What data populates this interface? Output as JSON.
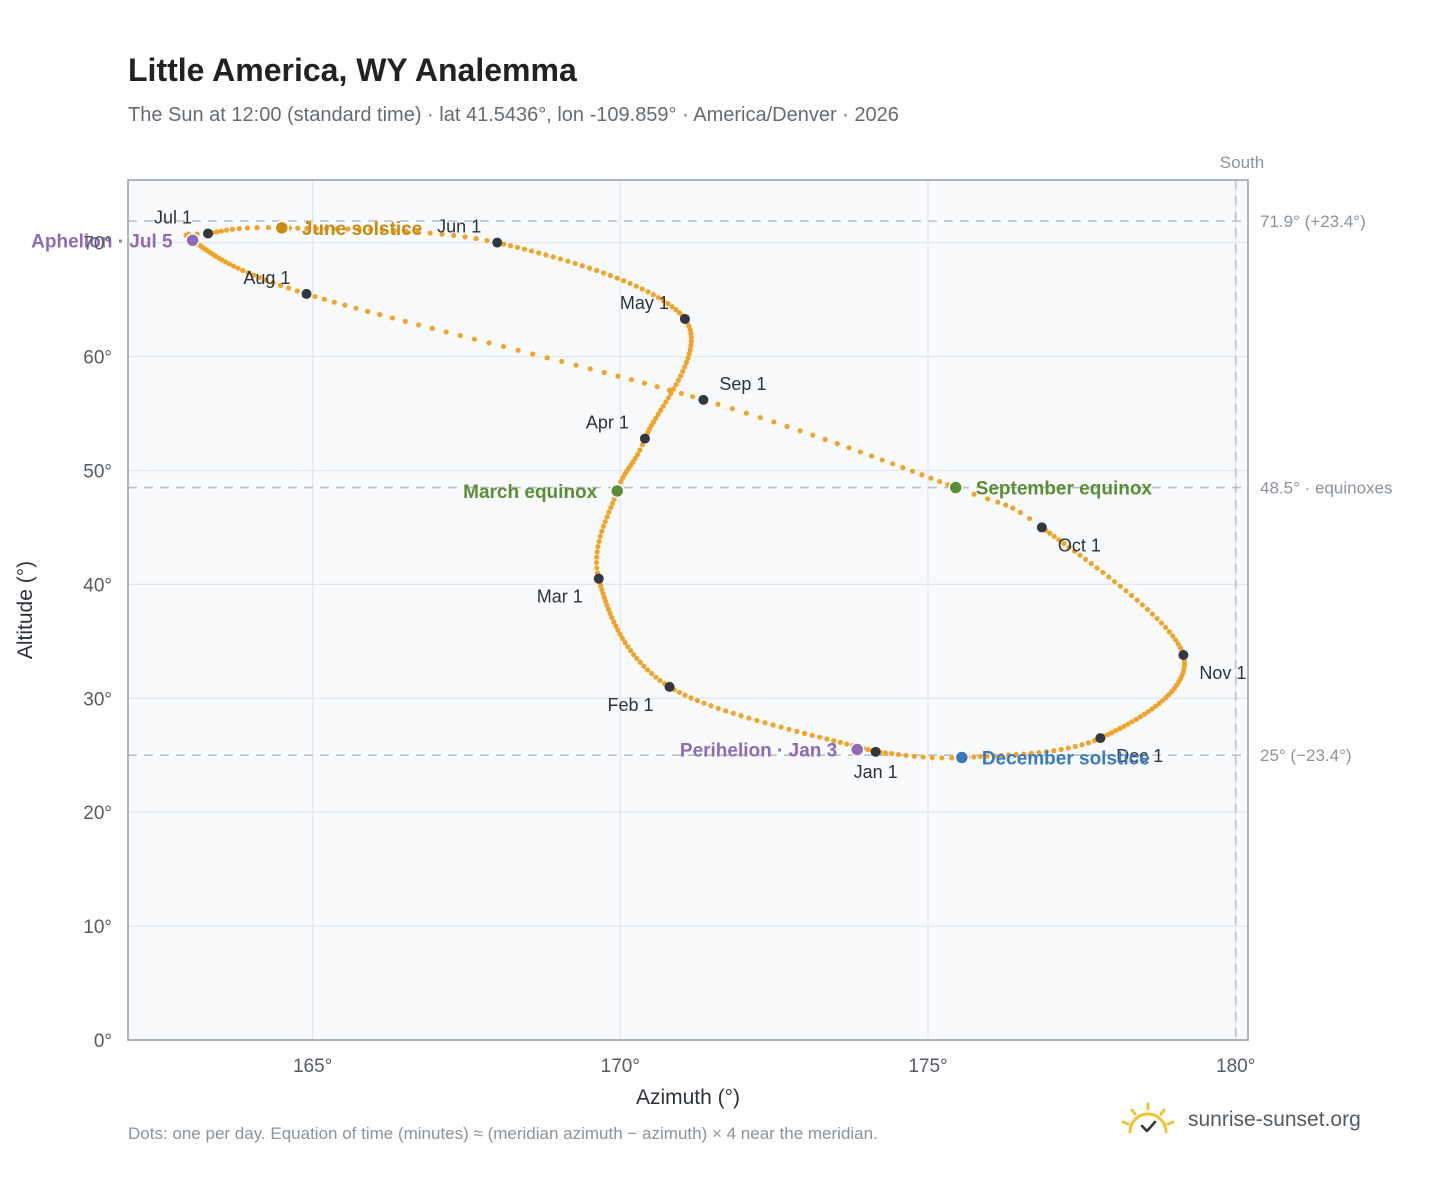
{
  "title": "Little America, WY Analemma",
  "subtitle": "The Sun at 12:00 (standard time) · lat 41.5436°, lon -109.859° · America/Denver · 2026",
  "footnote": "Dots: one per day. Equation of time (minutes) ≈ (meridian azimuth − azimuth) × 4 near the meridian.",
  "brand": {
    "text": "sunrise-sunset.org",
    "icon": "sun-check-icon",
    "color": "#f2c231"
  },
  "colors": {
    "path": "#f0a52a",
    "month_marker": "#333840",
    "june_solstice": "#c98a0e",
    "december_solstice": "#3a7abf",
    "equinox": "#5a8f35",
    "apsis": "#8e6bb5",
    "reference": "#b8c0c8",
    "plot_bg": "#f8fafc",
    "grid": "#e2e7ec",
    "frame": "#9aa4b0"
  },
  "chart_data": {
    "type": "scatter",
    "xlabel": "Azimuth (°)",
    "ylabel": "Altitude (°)",
    "xlim": [
      162,
      180.2
    ],
    "ylim": [
      0,
      75.5
    ],
    "x_ticks": [
      165,
      170,
      175,
      180
    ],
    "y_ticks": [
      0,
      10,
      20,
      30,
      40,
      50,
      60,
      70
    ],
    "x_tick_suffix": "°",
    "y_tick_suffix": "°",
    "grid": true,
    "path_anchors": [
      {
        "doy": 1,
        "az": 174.15,
        "alt": 25.3
      },
      {
        "doy": 32,
        "az": 170.8,
        "alt": 31.0
      },
      {
        "doy": 60,
        "az": 169.65,
        "alt": 40.5
      },
      {
        "doy": 78,
        "az": 169.95,
        "alt": 48.2
      },
      {
        "doy": 91,
        "az": 170.4,
        "alt": 52.8
      },
      {
        "doy": 121,
        "az": 171.05,
        "alt": 63.3
      },
      {
        "doy": 152,
        "az": 168.0,
        "alt": 70.0
      },
      {
        "doy": 172,
        "az": 164.5,
        "alt": 71.3
      },
      {
        "doy": 182,
        "az": 163.3,
        "alt": 70.8
      },
      {
        "doy": 186,
        "az": 163.05,
        "alt": 70.2
      },
      {
        "doy": 213,
        "az": 164.9,
        "alt": 65.5
      },
      {
        "doy": 244,
        "az": 171.35,
        "alt": 56.2
      },
      {
        "doy": 266,
        "az": 175.45,
        "alt": 48.5
      },
      {
        "doy": 274,
        "az": 176.85,
        "alt": 45.0
      },
      {
        "doy": 305,
        "az": 179.15,
        "alt": 33.8
      },
      {
        "doy": 335,
        "az": 177.8,
        "alt": 26.5
      },
      {
        "doy": 355,
        "az": 175.55,
        "alt": 24.8
      },
      {
        "doy": 366,
        "az": 174.15,
        "alt": 25.3
      }
    ],
    "month_markers": [
      {
        "label": "Jan 1",
        "az": 174.15,
        "alt": 25.3,
        "pos": "below"
      },
      {
        "label": "Feb 1",
        "az": 170.8,
        "alt": 31.0,
        "pos": "below-left"
      },
      {
        "label": "Mar 1",
        "az": 169.65,
        "alt": 40.5,
        "pos": "below-left"
      },
      {
        "label": "Apr 1",
        "az": 170.4,
        "alt": 52.8,
        "pos": "above-left"
      },
      {
        "label": "May 1",
        "az": 171.05,
        "alt": 63.3,
        "pos": "above-left"
      },
      {
        "label": "Jun 1",
        "az": 168.0,
        "alt": 70.0,
        "pos": "above-left"
      },
      {
        "label": "Jul 1",
        "az": 163.3,
        "alt": 70.8,
        "pos": "above-left"
      },
      {
        "label": "Aug 1",
        "az": 164.9,
        "alt": 65.5,
        "pos": "above-left"
      },
      {
        "label": "Sep 1",
        "az": 171.35,
        "alt": 56.2,
        "pos": "above-right"
      },
      {
        "label": "Oct 1",
        "az": 176.85,
        "alt": 45.0,
        "pos": "below-right"
      },
      {
        "label": "Nov 1",
        "az": 179.15,
        "alt": 33.8,
        "pos": "below-right"
      },
      {
        "label": "Dec 1",
        "az": 177.8,
        "alt": 26.5,
        "pos": "below-right"
      }
    ],
    "events": [
      {
        "label": "June solstice",
        "az": 164.5,
        "alt": 71.3,
        "kind": "june_solstice",
        "pos": "right"
      },
      {
        "label": "December solstice",
        "az": 175.55,
        "alt": 24.8,
        "kind": "december_solstice",
        "pos": "right"
      },
      {
        "label": "March equinox",
        "az": 169.95,
        "alt": 48.2,
        "kind": "equinox",
        "pos": "left"
      },
      {
        "label": "September equinox",
        "az": 175.45,
        "alt": 48.5,
        "kind": "equinox",
        "pos": "right"
      },
      {
        "label": "Aphelion · Jul 5",
        "az": 163.05,
        "alt": 70.2,
        "kind": "apsis",
        "pos": "left"
      },
      {
        "label": "Perihelion · Jan 3",
        "az": 173.85,
        "alt": 25.5,
        "kind": "apsis",
        "pos": "left"
      }
    ],
    "reference_lines": [
      {
        "alt": 71.9,
        "label": "71.9° (+23.4°)"
      },
      {
        "alt": 48.5,
        "label": "48.5° · equinoxes"
      },
      {
        "alt": 25.0,
        "label": "25° (−23.4°)"
      }
    ],
    "south_line": {
      "az": 180,
      "label": "South"
    }
  }
}
